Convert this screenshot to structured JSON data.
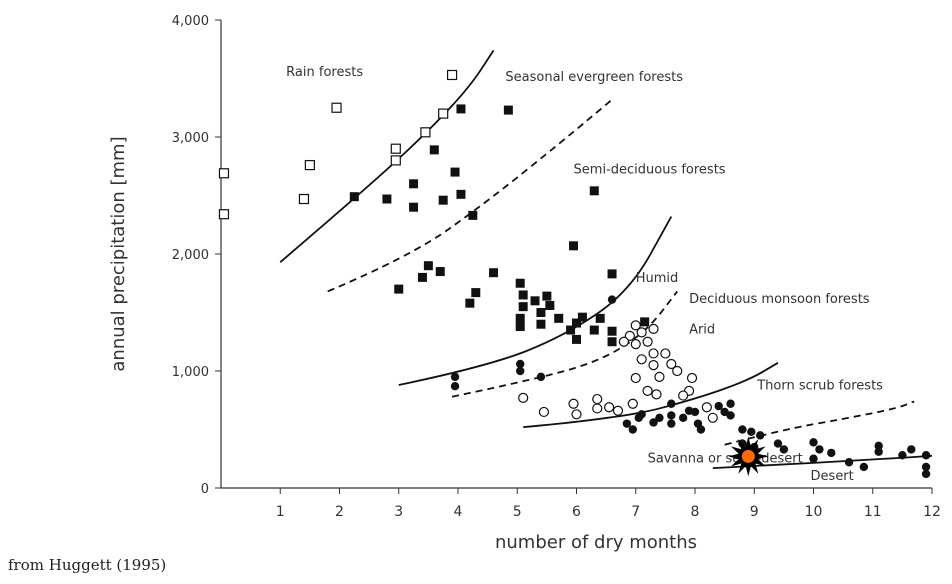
{
  "chart_data": {
    "type": "scatter",
    "xlabel": "number of dry months",
    "ylabel": "annual precipitation [mm]",
    "xlim": [
      0,
      12
    ],
    "ylim": [
      0,
      4000
    ],
    "x_ticks": [
      1,
      2,
      3,
      4,
      5,
      6,
      7,
      8,
      9,
      10,
      11,
      12
    ],
    "x_tick_labels": [
      "1",
      "2",
      "3",
      "4",
      "5",
      "6",
      "7",
      "8",
      "9",
      "10",
      "11",
      "12"
    ],
    "y_ticks": [
      0,
      1000,
      2000,
      3000,
      4000
    ],
    "y_tick_labels": [
      "0",
      "1,000",
      "2,000",
      "3,000",
      "4,000"
    ],
    "grid": false,
    "region_labels": [
      {
        "text": "Rain forests",
        "x": 1.1,
        "y": 3520
      },
      {
        "text": "Seasonal evergreen forests",
        "x": 4.8,
        "y": 3480
      },
      {
        "text": "Semi-deciduous forests",
        "x": 5.95,
        "y": 2690
      },
      {
        "text": "Humid",
        "x": 7.0,
        "y": 1760
      },
      {
        "text": "Deciduous monsoon forests",
        "x": 7.9,
        "y": 1580
      },
      {
        "text": "Arid",
        "x": 7.9,
        "y": 1320
      },
      {
        "text": "Thorn scrub forests",
        "x": 9.05,
        "y": 840
      },
      {
        "text": "Savanna or semi-desert",
        "x": 7.2,
        "y": 220
      },
      {
        "text": "Desert",
        "x": 9.95,
        "y": 70
      }
    ],
    "boundaries": [
      {
        "style": "solid",
        "points": [
          [
            1.0,
            1930
          ],
          [
            2.5,
            2580
          ],
          [
            3.5,
            3050
          ],
          [
            4.2,
            3430
          ],
          [
            4.6,
            3740
          ]
        ]
      },
      {
        "style": "dashed",
        "points": [
          [
            1.8,
            1680
          ],
          [
            3.2,
            1980
          ],
          [
            4.5,
            2450
          ],
          [
            5.8,
            2980
          ],
          [
            6.6,
            3320
          ]
        ]
      },
      {
        "style": "solid",
        "points": [
          [
            3.0,
            880
          ],
          [
            4.5,
            1040
          ],
          [
            5.8,
            1300
          ],
          [
            6.9,
            1680
          ],
          [
            7.6,
            2320
          ]
        ]
      },
      {
        "style": "dashed",
        "points": [
          [
            3.9,
            780
          ],
          [
            5.5,
            950
          ],
          [
            6.5,
            1110
          ],
          [
            7.2,
            1350
          ],
          [
            7.7,
            1680
          ]
        ]
      },
      {
        "style": "solid",
        "points": [
          [
            5.1,
            520
          ],
          [
            6.8,
            600
          ],
          [
            8.0,
            760
          ],
          [
            8.9,
            920
          ],
          [
            9.4,
            1070
          ]
        ]
      },
      {
        "style": "dashed",
        "points": [
          [
            8.5,
            370
          ],
          [
            9.5,
            500
          ],
          [
            10.5,
            590
          ],
          [
            11.4,
            680
          ],
          [
            11.7,
            740
          ]
        ]
      },
      {
        "style": "solid",
        "points": [
          [
            8.3,
            170
          ],
          [
            9.5,
            200
          ],
          [
            10.5,
            230
          ],
          [
            11.4,
            255
          ],
          [
            12.0,
            275
          ]
        ]
      }
    ],
    "series": [
      {
        "marker": "open-square",
        "points": [
          [
            0.05,
            2690
          ],
          [
            0.05,
            2340
          ],
          [
            1.4,
            2470
          ],
          [
            1.5,
            2760
          ],
          [
            1.95,
            3250
          ],
          [
            2.95,
            2900
          ],
          [
            2.95,
            2800
          ],
          [
            3.45,
            3040
          ],
          [
            3.75,
            3200
          ],
          [
            3.9,
            3530
          ]
        ]
      },
      {
        "marker": "filled-square",
        "points": [
          [
            4.05,
            3240
          ],
          [
            4.85,
            3230
          ],
          [
            2.25,
            2490
          ],
          [
            2.8,
            2470
          ],
          [
            3.25,
            2600
          ],
          [
            3.25,
            2400
          ],
          [
            3.6,
            2890
          ],
          [
            3.75,
            2460
          ],
          [
            3.95,
            2700
          ],
          [
            4.05,
            2510
          ],
          [
            4.25,
            2330
          ],
          [
            6.3,
            2540
          ],
          [
            5.95,
            2070
          ],
          [
            3.0,
            1700
          ],
          [
            3.4,
            1800
          ],
          [
            3.5,
            1900
          ],
          [
            3.7,
            1850
          ],
          [
            4.2,
            1580
          ],
          [
            4.3,
            1670
          ],
          [
            4.6,
            1840
          ],
          [
            5.05,
            1750
          ],
          [
            5.1,
            1650
          ],
          [
            5.1,
            1550
          ],
          [
            5.05,
            1450
          ],
          [
            5.05,
            1380
          ],
          [
            5.3,
            1600
          ],
          [
            5.4,
            1500
          ],
          [
            5.5,
            1640
          ],
          [
            5.55,
            1560
          ],
          [
            5.4,
            1400
          ],
          [
            5.7,
            1450
          ],
          [
            5.9,
            1350
          ],
          [
            6.0,
            1410
          ],
          [
            6.0,
            1270
          ],
          [
            6.1,
            1460
          ],
          [
            6.3,
            1350
          ],
          [
            6.4,
            1450
          ],
          [
            6.6,
            1340
          ],
          [
            6.6,
            1250
          ],
          [
            6.6,
            1830
          ],
          [
            7.15,
            1420
          ]
        ]
      },
      {
        "marker": "open-circle",
        "points": [
          [
            7.0,
            1390
          ],
          [
            7.1,
            1330
          ],
          [
            7.3,
            1360
          ],
          [
            6.9,
            1300
          ],
          [
            7.0,
            1230
          ],
          [
            7.2,
            1250
          ],
          [
            6.8,
            1250
          ],
          [
            7.3,
            1150
          ],
          [
            7.5,
            1150
          ],
          [
            7.3,
            1050
          ],
          [
            7.6,
            1060
          ],
          [
            7.4,
            950
          ],
          [
            7.7,
            1000
          ],
          [
            7.1,
            1100
          ],
          [
            7.0,
            940
          ],
          [
            7.2,
            830
          ],
          [
            7.35,
            800
          ],
          [
            7.95,
            940
          ],
          [
            7.9,
            830
          ],
          [
            7.8,
            790
          ],
          [
            5.1,
            770
          ],
          [
            5.45,
            650
          ],
          [
            5.95,
            720
          ],
          [
            6.0,
            630
          ],
          [
            6.35,
            760
          ],
          [
            6.35,
            680
          ],
          [
            6.55,
            690
          ],
          [
            6.7,
            660
          ],
          [
            6.95,
            720
          ],
          [
            8.2,
            690
          ],
          [
            8.3,
            600
          ]
        ]
      },
      {
        "marker": "filled-circle",
        "points": [
          [
            3.95,
            950
          ],
          [
            3.95,
            870
          ],
          [
            5.05,
            1060
          ],
          [
            5.05,
            1000
          ],
          [
            5.4,
            950
          ],
          [
            6.6,
            1610
          ],
          [
            7.6,
            720
          ],
          [
            7.9,
            660
          ],
          [
            7.6,
            620
          ],
          [
            7.8,
            600
          ],
          [
            7.4,
            600
          ],
          [
            7.3,
            560
          ],
          [
            7.05,
            600
          ],
          [
            6.85,
            550
          ],
          [
            6.95,
            500
          ],
          [
            7.1,
            630
          ],
          [
            7.6,
            550
          ],
          [
            8.0,
            650
          ],
          [
            8.05,
            550
          ],
          [
            8.1,
            500
          ],
          [
            8.4,
            700
          ],
          [
            8.5,
            650
          ],
          [
            8.6,
            720
          ],
          [
            8.6,
            620
          ],
          [
            8.8,
            500
          ],
          [
            8.95,
            480
          ],
          [
            9.1,
            450
          ],
          [
            8.8,
            380
          ],
          [
            9.0,
            350
          ],
          [
            9.4,
            380
          ],
          [
            9.5,
            330
          ],
          [
            10.0,
            390
          ],
          [
            10.1,
            330
          ],
          [
            10.3,
            300
          ],
          [
            10.0,
            250
          ],
          [
            10.6,
            220
          ],
          [
            10.85,
            180
          ],
          [
            11.1,
            360
          ],
          [
            11.1,
            310
          ],
          [
            11.5,
            280
          ],
          [
            11.65,
            330
          ],
          [
            11.9,
            280
          ],
          [
            11.9,
            180
          ],
          [
            11.9,
            120
          ]
        ]
      }
    ],
    "annotation": {
      "type": "star",
      "x": 8.9,
      "y": 270,
      "fill": "#ff6a00",
      "outline": "#000000"
    }
  },
  "colors": {
    "ink": "#111111",
    "axis": "#333333",
    "star_fill": "#ff6a00"
  },
  "source_note": "from Huggett (1995)"
}
